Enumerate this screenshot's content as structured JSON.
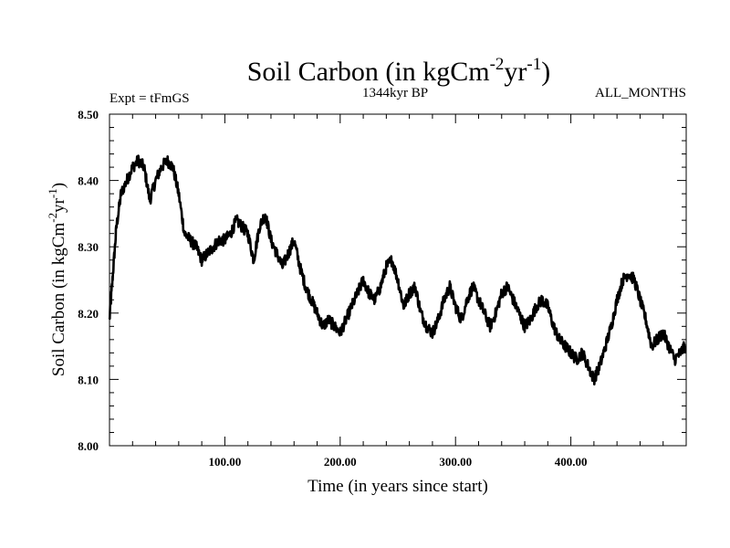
{
  "chart_data": {
    "type": "line",
    "title": "Soil Carbon (in kgCm",
    "title_unit_exp1": "-2",
    "title_unit_mid": "yr",
    "title_unit_exp2": "-1",
    "title_close": ")",
    "left_label": "Expt = tFmGS",
    "center_label": "1344kyr BP",
    "right_label": "ALL_MONTHS",
    "xlabel": "Time (in years since start)",
    "ylabel_main": "Soil Carbon (in kgCm",
    "ylabel_exp1": "-2",
    "ylabel_mid": "yr",
    "ylabel_exp2": "-1",
    "ylabel_close": ")",
    "xlim": [
      0,
      500
    ],
    "ylim": [
      8.0,
      8.5
    ],
    "grid": false,
    "xticks": [
      100,
      200,
      300,
      400
    ],
    "xtick_labels": [
      "100.00",
      "200.00",
      "300.00",
      "400.00"
    ],
    "yticks": [
      8.0,
      8.1,
      8.2,
      8.3,
      8.4,
      8.5
    ],
    "ytick_labels": [
      "8.00",
      "8.10",
      "8.20",
      "8.30",
      "8.40",
      "8.50"
    ],
    "series": [
      {
        "name": "Soil Carbon",
        "color": "#000000",
        "x": [
          0,
          3,
          6,
          10,
          15,
          20,
          25,
          30,
          35,
          40,
          45,
          50,
          55,
          60,
          65,
          70,
          75,
          80,
          85,
          90,
          95,
          100,
          105,
          110,
          115,
          120,
          125,
          130,
          135,
          140,
          145,
          150,
          155,
          160,
          165,
          170,
          175,
          180,
          185,
          190,
          195,
          200,
          205,
          210,
          215,
          220,
          225,
          230,
          235,
          240,
          245,
          250,
          255,
          260,
          265,
          270,
          275,
          280,
          285,
          290,
          295,
          300,
          305,
          310,
          315,
          320,
          325,
          330,
          335,
          340,
          345,
          350,
          355,
          360,
          365,
          370,
          375,
          380,
          385,
          390,
          395,
          400,
          405,
          410,
          415,
          420,
          425,
          430,
          435,
          440,
          445,
          450,
          455,
          460,
          465,
          470,
          475,
          480,
          485,
          490,
          495,
          499
        ],
        "y": [
          8.19,
          8.26,
          8.33,
          8.38,
          8.4,
          8.42,
          8.43,
          8.42,
          8.37,
          8.4,
          8.42,
          8.43,
          8.42,
          8.38,
          8.32,
          8.31,
          8.3,
          8.28,
          8.29,
          8.3,
          8.31,
          8.31,
          8.32,
          8.34,
          8.33,
          8.32,
          8.28,
          8.33,
          8.35,
          8.31,
          8.29,
          8.27,
          8.29,
          8.31,
          8.27,
          8.24,
          8.22,
          8.2,
          8.18,
          8.19,
          8.18,
          8.17,
          8.19,
          8.21,
          8.23,
          8.25,
          8.23,
          8.22,
          8.24,
          8.27,
          8.28,
          8.25,
          8.21,
          8.23,
          8.24,
          8.2,
          8.18,
          8.17,
          8.19,
          8.22,
          8.24,
          8.21,
          8.19,
          8.22,
          8.24,
          8.22,
          8.2,
          8.18,
          8.2,
          8.23,
          8.24,
          8.22,
          8.2,
          8.18,
          8.19,
          8.21,
          8.22,
          8.21,
          8.18,
          8.16,
          8.15,
          8.14,
          8.13,
          8.14,
          8.12,
          8.1,
          8.12,
          8.15,
          8.18,
          8.22,
          8.25,
          8.26,
          8.25,
          8.22,
          8.19,
          8.15,
          8.16,
          8.17,
          8.15,
          8.13,
          8.14,
          8.15
        ]
      }
    ]
  }
}
